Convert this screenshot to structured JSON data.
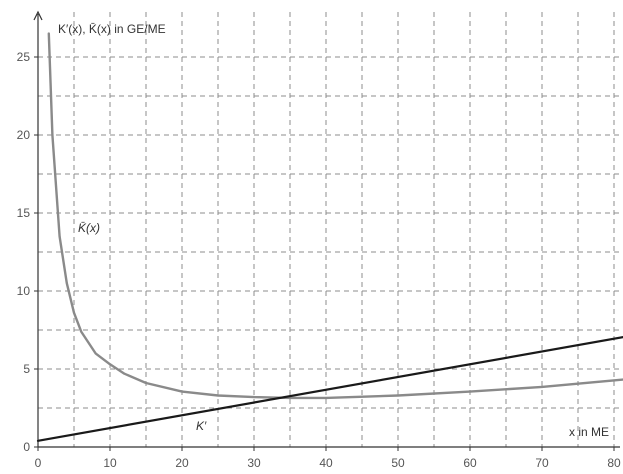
{
  "chart_data": {
    "type": "line",
    "ylabel": "K′(x), K̄(x) in GE/ME",
    "xlabel": "x in ME",
    "xlim": [
      0,
      82
    ],
    "ylim": [
      0,
      27
    ],
    "x_ticks": [
      "0",
      "10",
      "20",
      "30",
      "40",
      "50",
      "60",
      "70",
      "80"
    ],
    "y_ticks": [
      "0",
      "5",
      "10",
      "15",
      "20",
      "25"
    ],
    "grid": true,
    "series": [
      {
        "name": "K̄(x)",
        "color": "#8a8a8a",
        "x": [
          1.5,
          2,
          3,
          4,
          5,
          6,
          8,
          10,
          12,
          15,
          20,
          25,
          30,
          35,
          40,
          50,
          60,
          70,
          82
        ],
        "y": [
          26.5,
          20.0,
          13.5,
          10.5,
          8.6,
          7.4,
          6.0,
          5.3,
          4.7,
          4.1,
          3.55,
          3.3,
          3.2,
          3.15,
          3.15,
          3.3,
          3.55,
          3.85,
          4.35
        ]
      },
      {
        "name": "K′",
        "color": "#1a1a1a",
        "x": [
          0,
          82
        ],
        "y": [
          0.4,
          7.1
        ]
      }
    ]
  }
}
